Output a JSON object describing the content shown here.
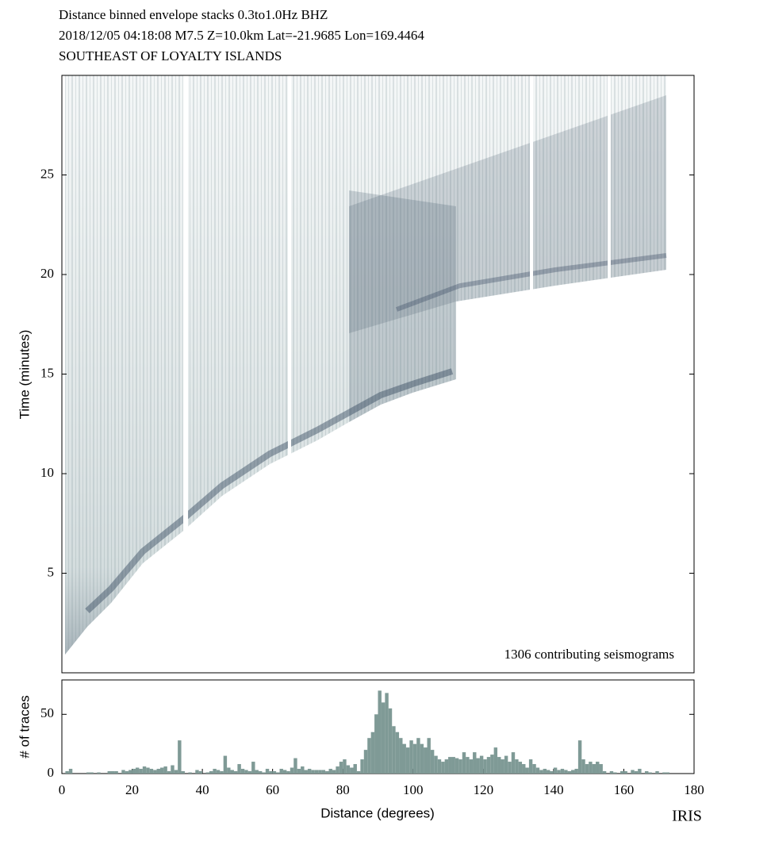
{
  "chart_data": [
    {
      "type": "image",
      "title_lines": [
        "Distance binned envelope stacks  0.3to1.0Hz  BHZ",
        "2018/12/05  04:18:08  M7.5  Z=10.0km Lat=-21.9685 Lon=169.4464",
        "SOUTHEAST OF LOYALTY ISLANDS"
      ],
      "annotation": "1306 contributing seismograms",
      "ylabel": "Time (minutes)",
      "xlim": [
        0,
        180
      ],
      "ylim": [
        0,
        30
      ],
      "yticks": [
        5,
        10,
        15,
        20,
        25
      ]
    },
    {
      "type": "histogram",
      "xlabel": "Distance (degrees)",
      "ylabel": "# of traces",
      "logo": "IRIS",
      "color": "#7f9a96",
      "xlim": [
        0,
        180
      ],
      "ylim": [
        0,
        79
      ],
      "xticks": [
        0,
        20,
        40,
        60,
        80,
        100,
        120,
        140,
        160,
        180
      ],
      "yticks": [
        0,
        50
      ],
      "bins": [
        0,
        1,
        2,
        3,
        4,
        5,
        6,
        7,
        8,
        9,
        10,
        11,
        12,
        13,
        14,
        15,
        16,
        17,
        18,
        19,
        20,
        21,
        22,
        23,
        24,
        25,
        26,
        27,
        28,
        29,
        30,
        31,
        32,
        33,
        34,
        35,
        36,
        37,
        38,
        39,
        40,
        41,
        42,
        43,
        44,
        45,
        46,
        47,
        48,
        49,
        50,
        51,
        52,
        53,
        54,
        55,
        56,
        57,
        58,
        59,
        60,
        61,
        62,
        63,
        64,
        65,
        66,
        67,
        68,
        69,
        70,
        71,
        72,
        73,
        74,
        75,
        76,
        77,
        78,
        79,
        80,
        81,
        82,
        83,
        84,
        85,
        86,
        87,
        88,
        89,
        90,
        91,
        92,
        93,
        94,
        95,
        96,
        97,
        98,
        99,
        100,
        101,
        102,
        103,
        104,
        105,
        106,
        107,
        108,
        109,
        110,
        111,
        112,
        113,
        114,
        115,
        116,
        117,
        118,
        119,
        120,
        121,
        122,
        123,
        124,
        125,
        126,
        127,
        128,
        129,
        130,
        131,
        132,
        133,
        134,
        135,
        136,
        137,
        138,
        139,
        140,
        141,
        142,
        143,
        144,
        145,
        146,
        147,
        148,
        149,
        150,
        151,
        152,
        153,
        154,
        155,
        156,
        157,
        158,
        159,
        160,
        161,
        162,
        163,
        164,
        165,
        166,
        167,
        168,
        169,
        170,
        171,
        172,
        173
      ],
      "counts": [
        0,
        2,
        4,
        0,
        0,
        0,
        0,
        1,
        1,
        0,
        1,
        0,
        0,
        2,
        2,
        2,
        0,
        3,
        2,
        3,
        4,
        5,
        4,
        6,
        5,
        4,
        3,
        4,
        5,
        6,
        2,
        7,
        3,
        28,
        2,
        0,
        1,
        0,
        3,
        2,
        0,
        1,
        2,
        4,
        3,
        2,
        15,
        5,
        3,
        2,
        8,
        4,
        3,
        2,
        10,
        3,
        2,
        1,
        4,
        2,
        2,
        1,
        4,
        3,
        2,
        5,
        13,
        4,
        6,
        3,
        4,
        3,
        3,
        3,
        3,
        2,
        4,
        3,
        6,
        10,
        12,
        7,
        5,
        8,
        2,
        12,
        20,
        30,
        35,
        50,
        70,
        60,
        68,
        55,
        40,
        35,
        30,
        25,
        22,
        28,
        25,
        30,
        25,
        22,
        30,
        20,
        15,
        12,
        10,
        12,
        14,
        14,
        13,
        12,
        18,
        14,
        12,
        18,
        13,
        15,
        12,
        14,
        16,
        22,
        14,
        12,
        15,
        10,
        18,
        12,
        10,
        8,
        5,
        12,
        8,
        5,
        3,
        4,
        3,
        2,
        5,
        3,
        4,
        3,
        2,
        3,
        4,
        28,
        12,
        8,
        10,
        8,
        10,
        8,
        2,
        0,
        2,
        1,
        0,
        2,
        2,
        0,
        3,
        2,
        4,
        0,
        2,
        1,
        0,
        2,
        0,
        1,
        1
      ]
    }
  ]
}
